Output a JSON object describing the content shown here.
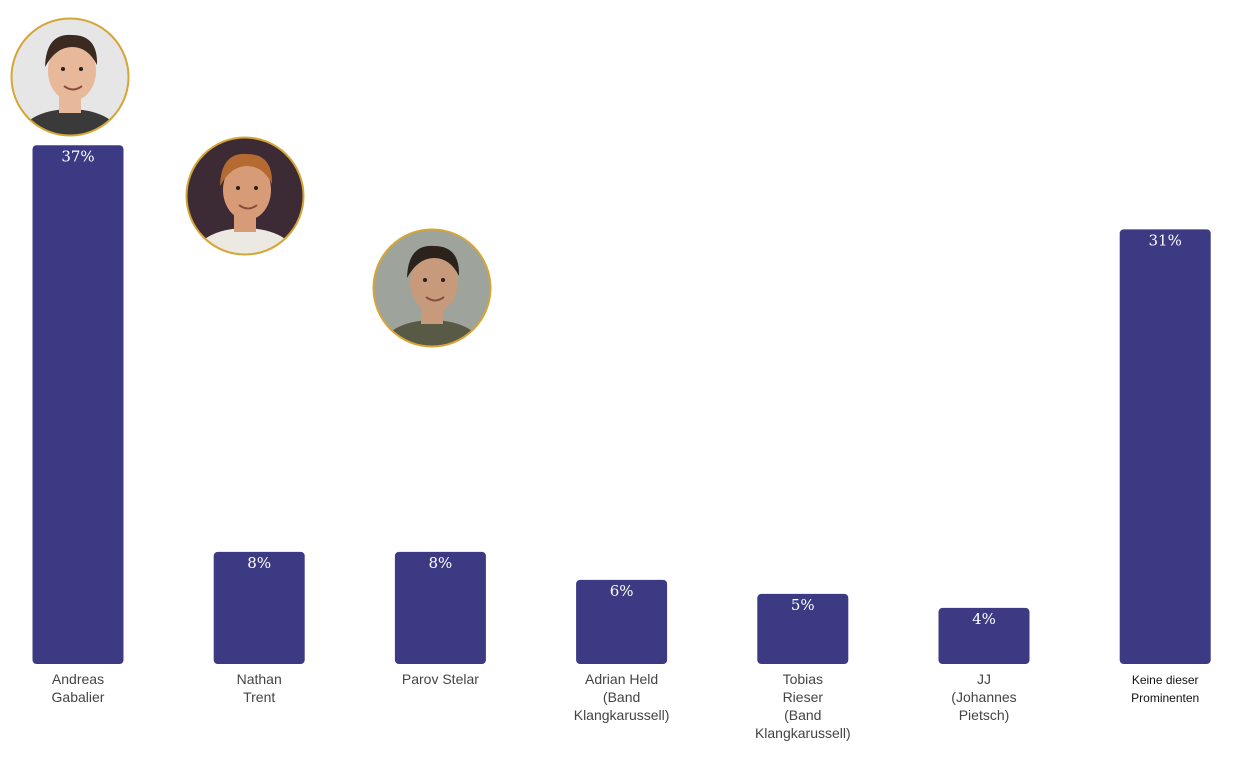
{
  "chart_data": {
    "type": "bar",
    "categories": [
      [
        "Andreas",
        "Gabalier"
      ],
      [
        "Nathan",
        "Trent"
      ],
      [
        "Parov Stelar"
      ],
      [
        "Adrian Held",
        "(Band",
        "Klangkarussell)"
      ],
      [
        "Tobias",
        "Rieser",
        "(Band",
        "Klangkarussell)"
      ],
      [
        "JJ",
        "(Johannes",
        "Pietsch)"
      ],
      [
        "Keine dieser",
        "Prominenten"
      ]
    ],
    "values": [
      37,
      8,
      8,
      6,
      5,
      4,
      31
    ],
    "value_labels": [
      "37%",
      "8%",
      "8%",
      "6%",
      "5%",
      "4%",
      "31%"
    ],
    "unit": "%",
    "title": "",
    "xlabel": "",
    "ylabel": "",
    "bar_color": "#3b3a83",
    "portraits": [
      {
        "category_index": 0,
        "icon": "portrait-photo-icon",
        "skin": "#e8b89a",
        "hair": "#3a2a20",
        "bg": "#e6e6e6",
        "shirt": "#3a3a3a"
      },
      {
        "category_index": 1,
        "icon": "portrait-photo-icon",
        "skin": "#d89b78",
        "hair": "#b56a32",
        "bg": "#3c2a35",
        "shirt": "#ece8e2"
      },
      {
        "category_index": 2,
        "icon": "portrait-photo-icon",
        "skin": "#c79a7c",
        "hair": "#2b221b",
        "bg": "#9ea39c",
        "shirt": "#595a45"
      }
    ],
    "portrait_ring_color": "#d4a537"
  }
}
